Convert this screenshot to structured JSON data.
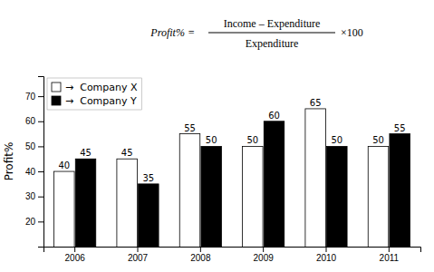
{
  "chart_data": {
    "type": "bar",
    "ylabel": "Profit%",
    "categories": [
      "2006",
      "2007",
      "2008",
      "2009",
      "2010",
      "2011"
    ],
    "series": [
      {
        "name": "→  Company X",
        "color": "white",
        "values": [
          40,
          45,
          55,
          50,
          65,
          50
        ]
      },
      {
        "name": "→  Company Y",
        "color": "black",
        "values": [
          45,
          35,
          50,
          60,
          50,
          55
        ]
      }
    ],
    "ylim": [
      10,
      78
    ],
    "yticks": [
      20,
      30,
      40,
      50,
      60,
      70
    ],
    "grid": false,
    "legend": "upper left",
    "data_labels": true,
    "annotations": [
      "Profit% =",
      "Income – Expenditure",
      "Expenditure",
      "×100"
    ]
  }
}
